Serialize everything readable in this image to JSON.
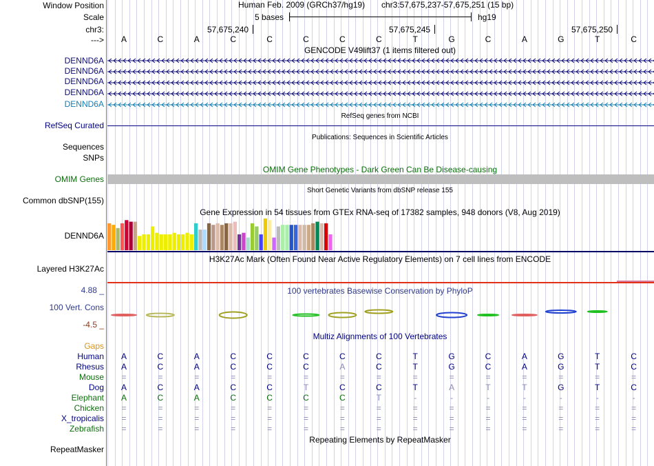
{
  "header": {
    "window_position_label": "Window Position",
    "scale_label": "Scale",
    "chrom_label": "chr3:",
    "strand_label": "--->",
    "assembly": "Human Feb. 2009 (GRCh37/hg19)",
    "position": "chr3:57,675,237-57,675,251 (15 bp)",
    "scale_text": "5 bases",
    "db": "hg19",
    "ticks": [
      "57,675,240",
      "57,675,245",
      "57,675,250"
    ]
  },
  "bases": [
    "A",
    "C",
    "A",
    "C",
    "C",
    "C",
    "C",
    "C",
    "T",
    "G",
    "C",
    "A",
    "G",
    "T",
    "C"
  ],
  "gencode": {
    "title": "GENCODE V49lift37 (1 items filtered out)",
    "items": [
      "DENND6A",
      "DENND6A",
      "DENND6A",
      "DENND6A",
      "DENND6A"
    ],
    "colors": [
      "#0c0c78",
      "#0c0c78",
      "#0c0c78",
      "#0c0c78",
      "#127db2"
    ]
  },
  "refseq": {
    "title": "RefSeq genes from NCBI",
    "label": "RefSeq Curated",
    "color": "#000080"
  },
  "publications": {
    "title": "Publications: Sequences in Scientific Articles",
    "label_seq": "Sequences",
    "label_snp": "SNPs"
  },
  "omim": {
    "title": "OMIM Gene Phenotypes - Dark Green Can Be Disease-causing",
    "label": "OMIM Genes",
    "color": "#0a6e0a"
  },
  "dbsnp": {
    "title": "Short Genetic Variants from dbSNP release 155",
    "label": "Common dbSNP(155)"
  },
  "gtex": {
    "title": "Gene Expression in 54 tissues from GTEx RNA-seq of 17382 samples, 948 donors (V8, Aug 2019)",
    "label": "DENND6A",
    "bars": [
      {
        "c": "#ff9933",
        "v": 0.85
      },
      {
        "c": "#ffaa00",
        "v": 0.8
      },
      {
        "c": "#aabb66",
        "v": 0.7
      },
      {
        "c": "#ff5555",
        "v": 0.85
      },
      {
        "c": "#cc0033",
        "v": 0.95
      },
      {
        "c": "#aa0033",
        "v": 0.9
      },
      {
        "c": "#c4a48a",
        "v": 0.9
      },
      {
        "c": "#eeee00",
        "v": 0.45
      },
      {
        "c": "#eeee00",
        "v": 0.5
      },
      {
        "c": "#eeee00",
        "v": 0.5
      },
      {
        "c": "#eeee00",
        "v": 0.75
      },
      {
        "c": "#eeee00",
        "v": 0.55
      },
      {
        "c": "#eeee00",
        "v": 0.5
      },
      {
        "c": "#eeee00",
        "v": 0.5
      },
      {
        "c": "#eeee00",
        "v": 0.5
      },
      {
        "c": "#eeee00",
        "v": 0.55
      },
      {
        "c": "#eeee00",
        "v": 0.5
      },
      {
        "c": "#eeee00",
        "v": 0.5
      },
      {
        "c": "#eeee00",
        "v": 0.55
      },
      {
        "c": "#eeee00",
        "v": 0.5
      },
      {
        "c": "#33cccc",
        "v": 0.85
      },
      {
        "c": "#bbbbbb",
        "v": 0.65
      },
      {
        "c": "#aaddff",
        "v": 0.65
      },
      {
        "c": "#886644",
        "v": 0.85
      },
      {
        "c": "#bb9988",
        "v": 0.8
      },
      {
        "c": "#ddbbaa",
        "v": 0.85
      },
      {
        "c": "#aa8866",
        "v": 0.8
      },
      {
        "c": "#886644",
        "v": 0.85
      },
      {
        "c": "#ddbbaa",
        "v": 0.85
      },
      {
        "c": "#eebbbb",
        "v": 0.9
      },
      {
        "c": "#773399",
        "v": 0.5
      },
      {
        "c": "#cc44cc",
        "v": 0.55
      },
      {
        "c": "#aaddcc",
        "v": 0.4
      },
      {
        "c": "#99cc33",
        "v": 0.85
      },
      {
        "c": "#99cc66",
        "v": 0.75
      },
      {
        "c": "#4444ff",
        "v": 0.5
      },
      {
        "c": "#eecc00",
        "v": 1.0
      },
      {
        "c": "#ffee99",
        "v": 0.95
      },
      {
        "c": "#cc66ff",
        "v": 0.4
      },
      {
        "c": "#bbbbbb",
        "v": 0.75
      },
      {
        "c": "#aaeeaa",
        "v": 0.8
      },
      {
        "c": "#aaeeaa",
        "v": 0.8
      },
      {
        "c": "#2255cc",
        "v": 0.8
      },
      {
        "c": "#3366dd",
        "v": 0.8
      },
      {
        "c": "#ddbbaa",
        "v": 0.8
      },
      {
        "c": "#ccbbaa",
        "v": 0.8
      },
      {
        "c": "#ccaa88",
        "v": 0.8
      },
      {
        "c": "#aa8866",
        "v": 0.85
      },
      {
        "c": "#008855",
        "v": 0.9
      },
      {
        "c": "#ddbbaa",
        "v": 0.85
      },
      {
        "c": "#dd0000",
        "v": 0.85
      },
      {
        "c": "#ee66ee",
        "v": 0.5
      }
    ]
  },
  "h3k27ac": {
    "title": "H3K27Ac Mark (Often Found Near Active Regulatory Elements) on 7 cell lines from ENCODE",
    "label": "Layered H3K27Ac"
  },
  "phylop": {
    "title": "100 vertebrates Basewise Conservation by PhyloP",
    "label": "100 Vert. Cons",
    "max": "4.88 _",
    "min": "-4.5 _"
  },
  "multiz": {
    "title": "Multiz Alignments of 100 Vertebrates",
    "gaps_label": "Gaps",
    "species": [
      {
        "name": "Human",
        "color": "#000080",
        "seq": [
          "A",
          "C",
          "A",
          "C",
          "C",
          "C",
          "C",
          "C",
          "T",
          "G",
          "C",
          "A",
          "G",
          "T",
          "C"
        ]
      },
      {
        "name": "Rhesus",
        "color": "#000080",
        "seq": [
          "A",
          "C",
          "A",
          "C",
          "C",
          "C",
          "A",
          "C",
          "T",
          "G",
          "C",
          "A",
          "G",
          "T",
          "C"
        ]
      },
      {
        "name": "Mouse",
        "color": "#0a6e0a",
        "seq": [
          "=",
          "=",
          "=",
          "=",
          "=",
          "=",
          "=",
          "=",
          "=",
          "=",
          "=",
          "=",
          "=",
          "=",
          "="
        ]
      },
      {
        "name": "Dog",
        "color": "#000080",
        "seq": [
          "A",
          "C",
          "A",
          "C",
          "C",
          "T",
          "C",
          "C",
          "T",
          "A",
          "T",
          "T",
          "G",
          "T",
          "C"
        ]
      },
      {
        "name": "Elephant",
        "color": "#0a6e0a",
        "seq": [
          "A",
          "C",
          "A",
          "C",
          "C",
          "C",
          "C",
          "T",
          "-",
          "-",
          "-",
          "-",
          "-",
          "-",
          "-"
        ]
      },
      {
        "name": "Chicken",
        "color": "#0a6e0a",
        "seq": [
          "=",
          "=",
          "=",
          "=",
          "=",
          "=",
          "=",
          "=",
          "=",
          "=",
          "=",
          "=",
          "=",
          "=",
          "="
        ]
      },
      {
        "name": "X_tropicalis",
        "color": "#000080",
        "seq": [
          "=",
          "=",
          "=",
          "=",
          "=",
          "=",
          "=",
          "=",
          "=",
          "=",
          "=",
          "=",
          "=",
          "=",
          "="
        ]
      },
      {
        "name": "Zebrafish",
        "color": "#0a6e0a",
        "seq": [
          "=",
          "=",
          "=",
          "=",
          "=",
          "=",
          "=",
          "=",
          "=",
          "=",
          "=",
          "=",
          "=",
          "=",
          "="
        ]
      }
    ]
  },
  "repeatmasker": {
    "title": "Repeating Elements by RepeatMasker",
    "label": "RepeatMasker"
  }
}
